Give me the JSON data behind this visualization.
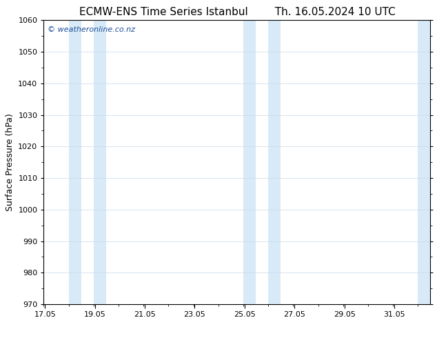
{
  "title_left": "ECMW-ENS Time Series Istanbul",
  "title_right": "Th. 16.05.2024 10 UTC",
  "ylabel": "Surface Pressure (hPa)",
  "ylim": [
    970,
    1060
  ],
  "ytick_step": 10,
  "xlim": [
    17.0,
    32.5
  ],
  "xticks": [
    17.05,
    19.05,
    21.05,
    23.05,
    25.05,
    27.05,
    29.05,
    31.05
  ],
  "xtick_labels": [
    "17.05",
    "19.05",
    "21.05",
    "23.05",
    "25.05",
    "27.05",
    "29.05",
    "31.05"
  ],
  "shaded_bands": [
    [
      18.0,
      18.5
    ],
    [
      19.0,
      19.5
    ],
    [
      25.0,
      25.5
    ],
    [
      26.0,
      26.5
    ],
    [
      32.0,
      32.5
    ]
  ],
  "band_color": "#d8eaf7",
  "background_color": "#ffffff",
  "grid_color": "#c8dae8",
  "watermark_text": "© weatheronline.co.nz",
  "watermark_color": "#1a4d99",
  "title_fontsize": 11,
  "label_fontsize": 9,
  "tick_fontsize": 8,
  "watermark_fontsize": 8
}
